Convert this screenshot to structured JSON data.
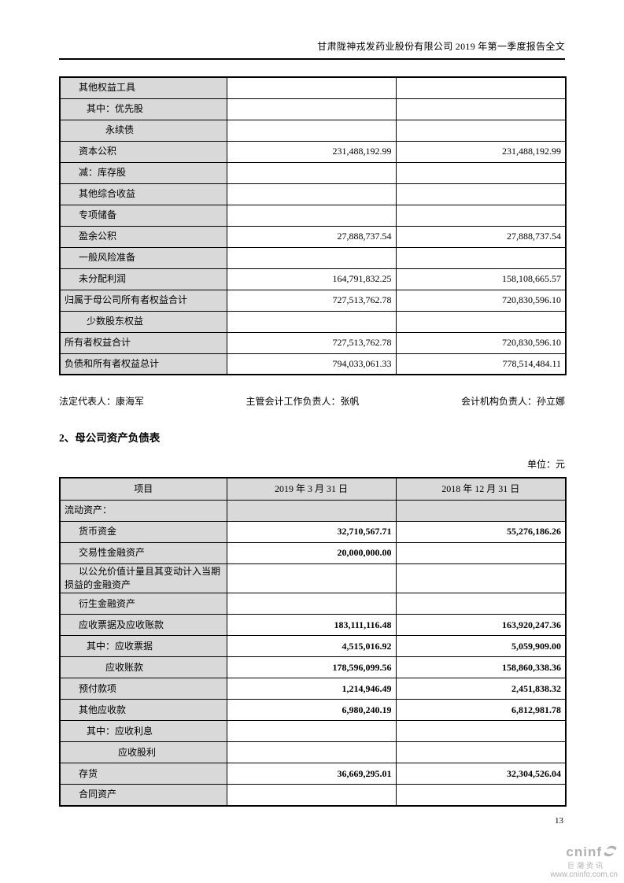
{
  "page": {
    "header_title": "甘肃陇神戎发药业股份有限公司 2019 年第一季度报告全文",
    "page_number": "13"
  },
  "equity_table": {
    "rows": [
      {
        "label": "其他权益工具",
        "indent": 1,
        "v1": "",
        "v2": ""
      },
      {
        "label": "其中：优先股",
        "indent": 2,
        "v1": "",
        "v2": ""
      },
      {
        "label": "永续债",
        "indent": 3,
        "v1": "",
        "v2": ""
      },
      {
        "label": "资本公积",
        "indent": 1,
        "v1": "231,488,192.99",
        "v2": "231,488,192.99"
      },
      {
        "label": "减：库存股",
        "indent": 1,
        "v1": "",
        "v2": ""
      },
      {
        "label": "其他综合收益",
        "indent": 1,
        "v1": "",
        "v2": ""
      },
      {
        "label": "专项储备",
        "indent": 1,
        "v1": "",
        "v2": ""
      },
      {
        "label": "盈余公积",
        "indent": 1,
        "v1": "27,888,737.54",
        "v2": "27,888,737.54"
      },
      {
        "label": "一般风险准备",
        "indent": 1,
        "v1": "",
        "v2": ""
      },
      {
        "label": "未分配利润",
        "indent": 1,
        "v1": "164,791,832.25",
        "v2": "158,108,665.57"
      },
      {
        "label": "归属于母公司所有者权益合计",
        "indent": 0,
        "v1": "727,513,762.78",
        "v2": "720,830,596.10"
      },
      {
        "label": "少数股东权益",
        "indent": 2,
        "v1": "",
        "v2": ""
      },
      {
        "label": "所有者权益合计",
        "indent": 0,
        "v1": "727,513,762.78",
        "v2": "720,830,596.10"
      },
      {
        "label": "负债和所有者权益总计",
        "indent": 0,
        "v1": "794,033,061.33",
        "v2": "778,514,484.11"
      }
    ]
  },
  "signatories": {
    "legal_rep": "法定代表人：康海军",
    "accounting_head": "主管会计工作负责人：张帆",
    "accounting_org_head": "会计机构负责人：孙立娜"
  },
  "section": {
    "title": "2、母公司资产负债表",
    "unit": "单位：元"
  },
  "parent_balance_table": {
    "headers": [
      "项目",
      "2019 年 3 月 31 日",
      "2018 年 12 月 31 日"
    ],
    "rows": [
      {
        "label": "流动资产：",
        "indent": 0,
        "v1": "",
        "v2": "",
        "section": true
      },
      {
        "label": "货币资金",
        "indent": 1,
        "v1": "32,710,567.71",
        "v2": "55,276,186.26"
      },
      {
        "label": "交易性金融资产",
        "indent": 1,
        "v1": "20,000,000.00",
        "v2": ""
      },
      {
        "label": "以公允价值计量且其变动计入当期损益的金融资产",
        "indent": 1,
        "v1": "",
        "v2": ""
      },
      {
        "label": "衍生金融资产",
        "indent": 1,
        "v1": "",
        "v2": ""
      },
      {
        "label": "应收票据及应收账款",
        "indent": 1,
        "v1": "183,111,116.48",
        "v2": "163,920,247.36"
      },
      {
        "label": "其中：应收票据",
        "indent": 2,
        "v1": "4,515,016.92",
        "v2": "5,059,909.00"
      },
      {
        "label": "应收账款",
        "indent": 3,
        "v1": "178,596,099.56",
        "v2": "158,860,338.36"
      },
      {
        "label": "预付款项",
        "indent": 1,
        "v1": "1,214,946.49",
        "v2": "2,451,838.32"
      },
      {
        "label": "其他应收款",
        "indent": 1,
        "v1": "6,980,240.19",
        "v2": "6,812,981.78"
      },
      {
        "label": "其中：应收利息",
        "indent": 2,
        "v1": "",
        "v2": ""
      },
      {
        "label": "应收股利",
        "indent": 4,
        "v1": "",
        "v2": ""
      },
      {
        "label": "存货",
        "indent": 1,
        "v1": "36,669,295.01",
        "v2": "32,304,526.04"
      },
      {
        "label": "合同资产",
        "indent": 1,
        "v1": "",
        "v2": ""
      }
    ]
  },
  "footer_logo": {
    "word": "cninf",
    "cn_name": "巨潮资讯",
    "url": "www.cninfo.com.cn",
    "color": "#b1b1b1"
  }
}
